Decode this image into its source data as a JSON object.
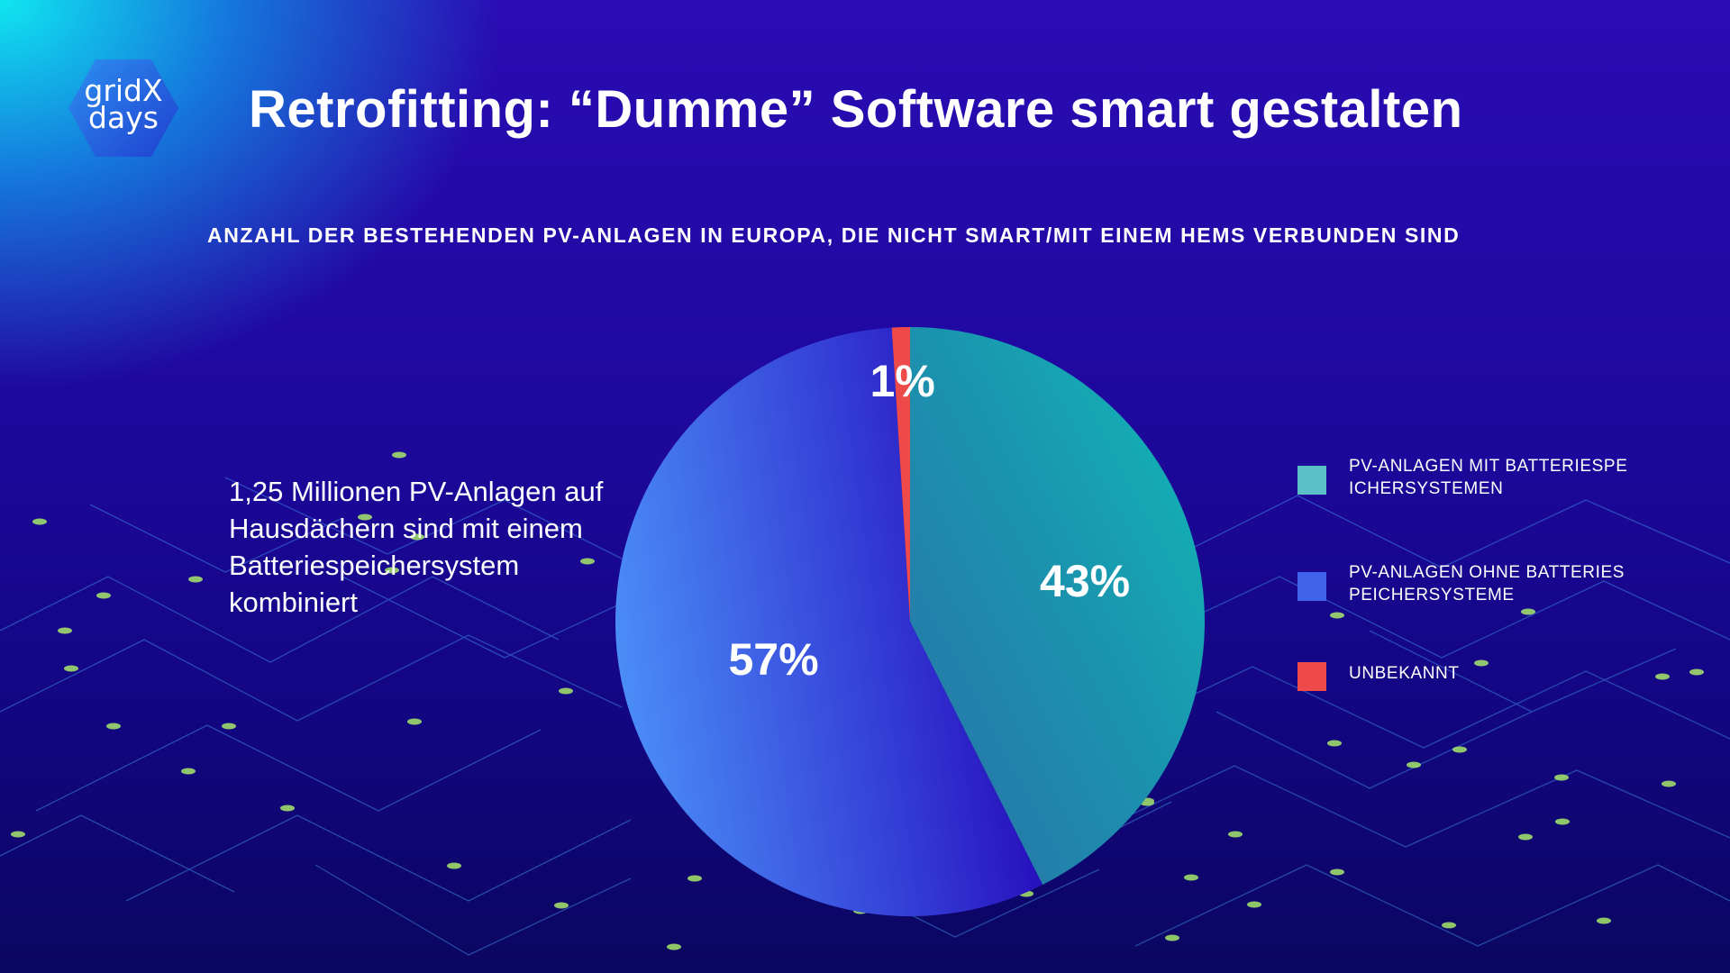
{
  "logo": {
    "line1": "gridX",
    "line2": "days"
  },
  "colors": {
    "teal": "#14b1b4",
    "blue": "#3f63ea",
    "red": "#ef4a4a"
  },
  "chart_data": {
    "type": "pie",
    "title": "Retrofitting: “Dumme” Software smart gestalten",
    "subtitle": "ANZAHL DER BESTEHENDEN PV-ANLAGEN IN EUROPA, DIE NICHT SMART/MIT EINEM HEMS VERBUNDEN SIND",
    "annotation": "1,25 Millionen PV-Anlagen auf Hausdächern sind mit einem Batteriespeichersystem kombiniert",
    "legend_position": "right",
    "series": [
      {
        "name": "PV-ANLAGEN MIT BATTERIESPEICHERSYSTEMEN",
        "value": 43,
        "label": "43%",
        "color": "#5bc0c8"
      },
      {
        "name": "PV-ANLAGEN OHNE BATTERIESPEICHERSYSTEME",
        "value": 57,
        "label": "57%",
        "color": "#3f63ea"
      },
      {
        "name": "UNBEKANNT",
        "value": 1,
        "label": "1%",
        "color": "#ef4a4a"
      }
    ]
  }
}
